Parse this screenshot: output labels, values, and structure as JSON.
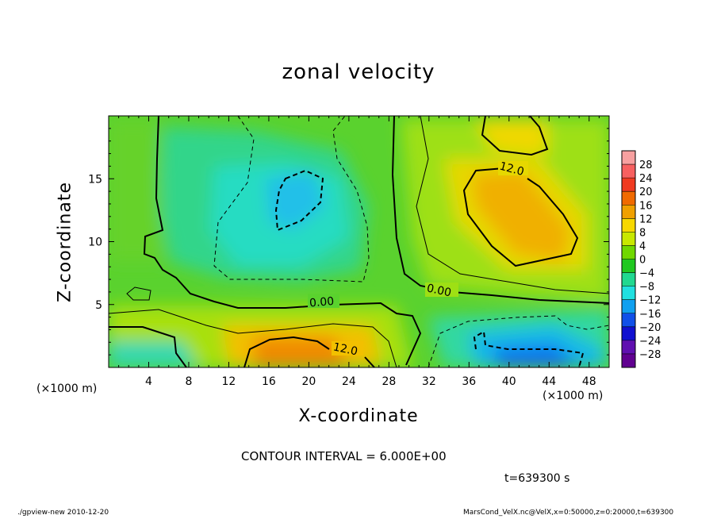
{
  "header": {
    "title": "zonal velocity"
  },
  "chart_data": {
    "type": "heatmap",
    "title": "zonal velocity",
    "xlabel": "X-coordinate",
    "ylabel": "Z-coordinate",
    "x_unit_left": "(×1000 m)",
    "x_unit_right": "(×1000 m)",
    "xlim": [
      0,
      50
    ],
    "ylim": [
      0,
      20
    ],
    "x_ticks": [
      4,
      8,
      12,
      16,
      20,
      24,
      28,
      32,
      36,
      40,
      44,
      48
    ],
    "y_ticks": [
      5,
      10,
      15
    ],
    "contour_labels": [
      {
        "text": "0.00",
        "x": 21,
        "z": 5.2
      },
      {
        "text": "0.00",
        "x": 34,
        "z": 6.0
      },
      {
        "text": "12.0",
        "x": 40.5,
        "z": 15.4
      },
      {
        "text": "12.0",
        "x": 24,
        "z": 1.2
      }
    ],
    "colorbar": {
      "levels": [
        28,
        24,
        20,
        16,
        12,
        8,
        4,
        0,
        -4,
        -8,
        -12,
        -16,
        -20,
        -24,
        -28
      ],
      "labels": [
        "28",
        "24",
        "20",
        "16",
        "12",
        "8",
        "4",
        "0",
        "−4",
        "−8",
        "−12",
        "−16",
        "−20",
        "−24",
        "−28"
      ],
      "colors": [
        "#f7a0a0",
        "#f76060",
        "#f03a20",
        "#f06a00",
        "#f0a000",
        "#f7d800",
        "#c8e800",
        "#70d800",
        "#20c820",
        "#20d890",
        "#20e0e0",
        "#10a0f0",
        "#1050e8",
        "#1010d0",
        "#6010b0",
        "#600090"
      ]
    },
    "grid": false
  },
  "annotations": {
    "contour_interval": "CONTOUR INTERVAL = 6.000E+00",
    "time": "t=639300 s"
  },
  "footer": {
    "left": "./gpview-new   2010-12-20",
    "right": "MarsCond_VelX.nc@VelX,x=0:50000,z=0:20000,t=639300"
  }
}
